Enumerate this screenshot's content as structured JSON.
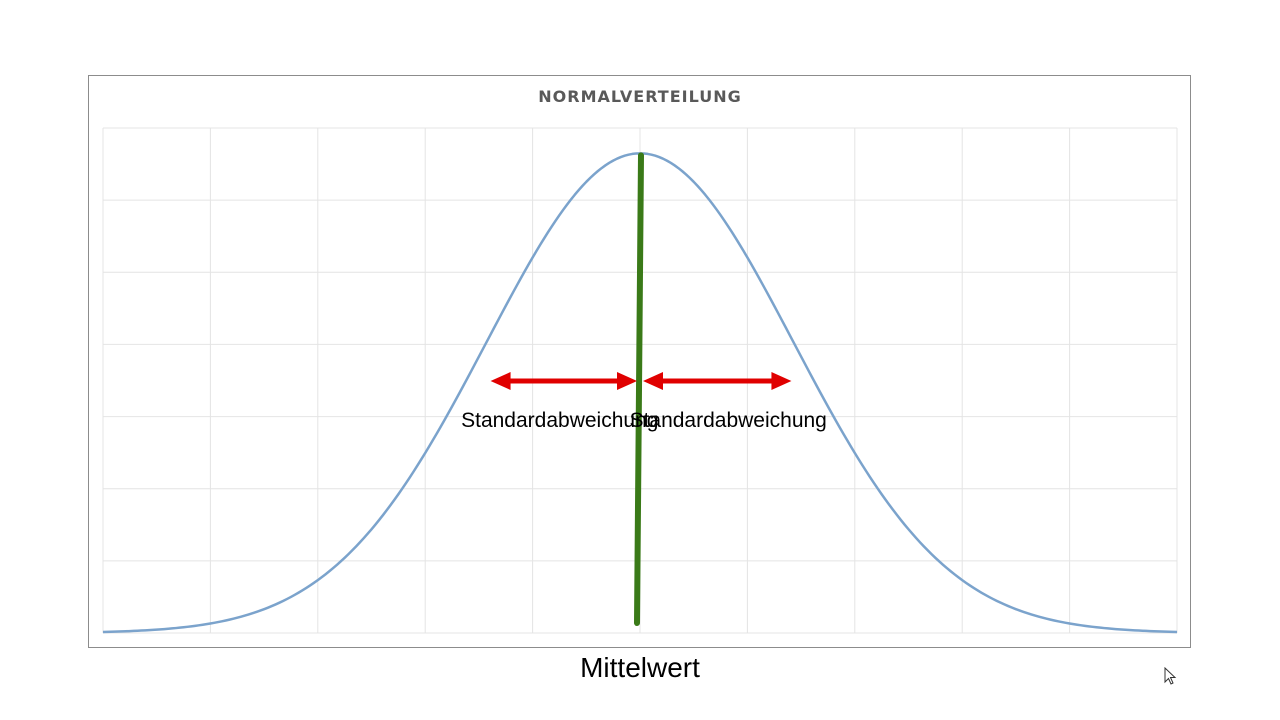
{
  "chart_data": {
    "type": "line",
    "title": "NORMALVERTEILUNG",
    "xlabel": "",
    "ylabel": "",
    "mean": 0,
    "std": 1,
    "xlim": [
      -3.5,
      3.5
    ],
    "ylim": [
      0,
      0.42
    ],
    "x_gridlines": 10,
    "y_gridlines": 7,
    "grid": true,
    "series": [
      {
        "color": "#7ba3cc",
        "x": [
          -3.5,
          -3.25,
          -3,
          -2.75,
          -2.5,
          -2.25,
          -2,
          -1.75,
          -1.5,
          -1.25,
          -1,
          -0.75,
          -0.5,
          -0.25,
          0,
          0.25,
          0.5,
          0.75,
          1,
          1.25,
          1.5,
          1.75,
          2,
          2.25,
          2.5,
          2.75,
          3,
          3.25,
          3.5
        ],
        "y": [
          0.0009,
          0.002,
          0.0044,
          0.0091,
          0.0175,
          0.0317,
          0.054,
          0.0863,
          0.1295,
          0.1826,
          0.242,
          0.3011,
          0.3521,
          0.3867,
          0.3989,
          0.3867,
          0.3521,
          0.3011,
          0.242,
          0.1826,
          0.1295,
          0.0863,
          0.054,
          0.0317,
          0.0175,
          0.0091,
          0.0044,
          0.002,
          0.0009
        ]
      }
    ],
    "annotations": {
      "left_arrow_label": "Standardabweichung",
      "right_arrow_label": "Standardabweichung",
      "mean_label": "Mittelwert",
      "mean_line_color": "#3a7a18",
      "arrow_color": "#e00000"
    }
  }
}
